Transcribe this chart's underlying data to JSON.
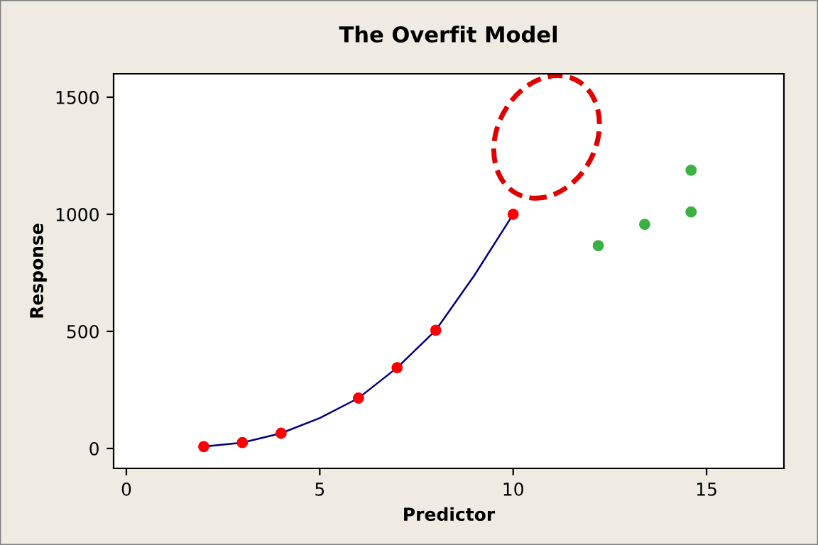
{
  "chart_data": {
    "type": "scatter",
    "title": "The Overfit Model",
    "xlabel": "Predictor",
    "ylabel": "Response",
    "xlim": [
      -0.33,
      17
    ],
    "ylim": [
      -85,
      1600
    ],
    "xticks": [
      0,
      5,
      10,
      15
    ],
    "yticks": [
      0,
      500,
      1000,
      1500
    ],
    "grid": false,
    "legend": false,
    "marker": "circle",
    "series": [
      {
        "type": "line",
        "color": "#000080",
        "x": [
          2,
          3,
          4,
          5,
          6,
          7,
          8,
          9,
          10
        ],
        "values": [
          8,
          25,
          65,
          130,
          215,
          345,
          505,
          740,
          1000
        ],
        "marker": "none"
      },
      {
        "color": "#ff0000",
        "x": [
          2,
          3,
          4,
          6,
          7,
          8,
          10
        ],
        "values": [
          8,
          25,
          65,
          215,
          345,
          505,
          1000
        ]
      },
      {
        "color": "#3cb043",
        "x": [
          12.2,
          13.4,
          14.6,
          14.6
        ],
        "values": [
          866,
          957,
          1010,
          1188
        ]
      }
    ]
  }
}
